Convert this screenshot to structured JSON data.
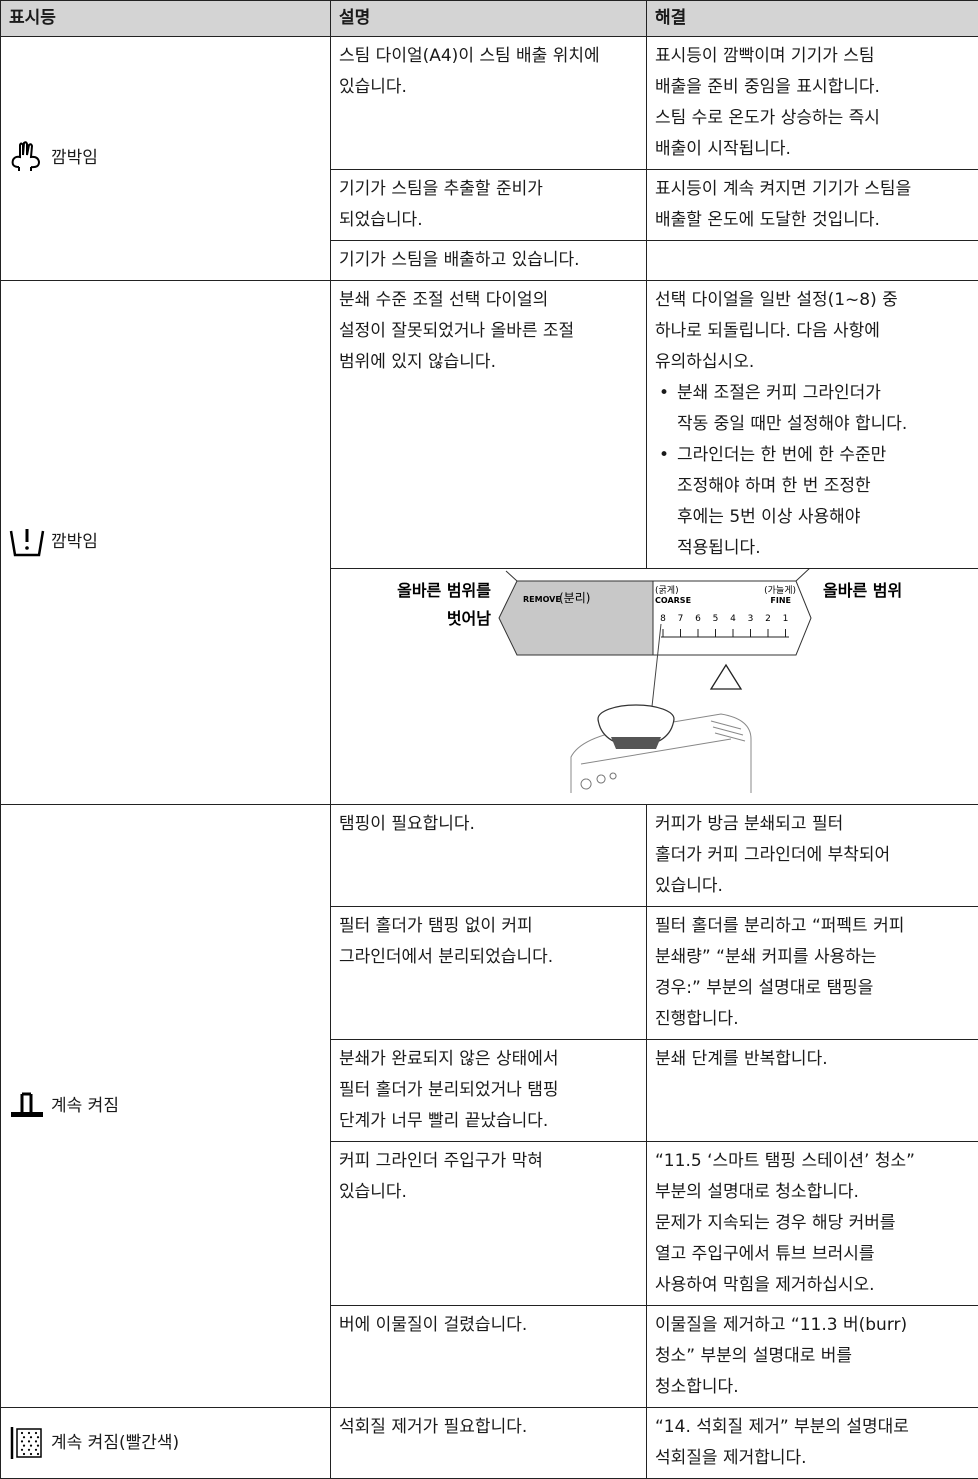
{
  "header": {
    "columns": [
      "표시등",
      "설명",
      "해결"
    ]
  },
  "groups": [
    {
      "indicator": "깜박임",
      "rows": [
        {
          "description": [
            "스팀 다이얼(A4)이 스팀 배출 위치에",
            "있습니다."
          ],
          "solution": [
            "표시등이 깜빡이며 기기가 스팀",
            "배출을 준비 중임을 표시합니다.",
            "스팀 수로 온도가 상승하는 즉시",
            "배출이 시작됩니다."
          ]
        },
        {
          "description": [
            "기기가 스팀을 추출할 준비가",
            "되었습니다."
          ],
          "solution": [
            "표시등이 계속 켜지면 기기가 스팀을",
            "배출할 온도에 도달한 것입니다."
          ]
        },
        {
          "description": [
            "기기가 스팀을 배출하고 있습니다."
          ],
          "solution": []
        }
      ]
    },
    {
      "indicator": "깜박임",
      "rows": [
        {
          "description": [
            "분쇄 수준 조절 선택 다이얼의",
            "설정이 잘못되었거나 올바른 조절",
            "범위에 있지 않습니다."
          ],
          "solution": [
            "선택 다이얼을 일반 설정(1~8) 중",
            "하나로 되돌립니다. 다음 사항에",
            "유의하십시오."
          ],
          "bullets": [
            [
              "분쇄 조절은 커피 그라인더가",
              "작동 중일 때만 설정해야 합니다."
            ],
            [
              "그라인더는 한 번에 한 수준만",
              "조정해야 하며 한 번 조정한",
              "후에는 5번 이상 사용해야",
              "적용됩니다."
            ]
          ]
        }
      ],
      "diagram": {
        "out_of_range": [
          "올바른 범위를",
          "벗어남"
        ],
        "remove": "REMOVE",
        "remove_ko": "(분리)",
        "coarse_ko": "(굵게)",
        "coarse": "COARSE",
        "fine_ko": "(가늘게)",
        "fine": "FINE",
        "scale": [
          8,
          7,
          6,
          5,
          4,
          3,
          2,
          1
        ],
        "in_range": "올바른 범위"
      }
    },
    {
      "indicator": "계속 켜짐",
      "rows": [
        {
          "description": [
            "탬핑이 필요합니다."
          ],
          "solution": [
            "커피가 방금 분쇄되고 필터",
            "홀더가 커피 그라인더에 부착되어",
            "있습니다."
          ]
        },
        {
          "description": [
            "필터 홀더가 탬핑 없이 커피",
            "그라인더에서 분리되었습니다."
          ],
          "solution": [
            "필터 홀더를 분리하고 “퍼펙트 커피",
            "분쇄량” “분쇄 커피를 사용하는",
            "경우:” 부분의 설명대로 탬핑을",
            "진행합니다."
          ]
        },
        {
          "description": [
            "분쇄가 완료되지 않은 상태에서",
            "필터 홀더가 분리되었거나 탬핑",
            "단계가 너무 빨리 끝났습니다."
          ],
          "solution": [
            "분쇄 단계를 반복합니다."
          ]
        },
        {
          "description": [
            "커피 그라인더 주입구가 막혀",
            "있습니다."
          ],
          "solution": [
            "“11.5 ‘스마트 탬핑 스테이션’ 청소”",
            "부분의 설명대로 청소합니다.",
            "문제가 지속되는 경우 해당 커버를",
            "열고 주입구에서 튜브 브러시를",
            "사용하여 막힘을 제거하십시오."
          ]
        },
        {
          "description": [
            "버에 이물질이 걸렸습니다."
          ],
          "solution": [
            "이물질을 제거하고 “11.3 버(burr)",
            "청소” 부분의 설명대로 버를",
            "청소합니다."
          ]
        }
      ]
    },
    {
      "indicator": "계속 켜짐(빨간색)",
      "rows": [
        {
          "description": [
            "석회질 제거가 필요합니다."
          ],
          "solution": [
            "“14. 석회질 제거” 부분의 설명대로",
            "석회질을 제거합니다."
          ]
        }
      ]
    }
  ]
}
